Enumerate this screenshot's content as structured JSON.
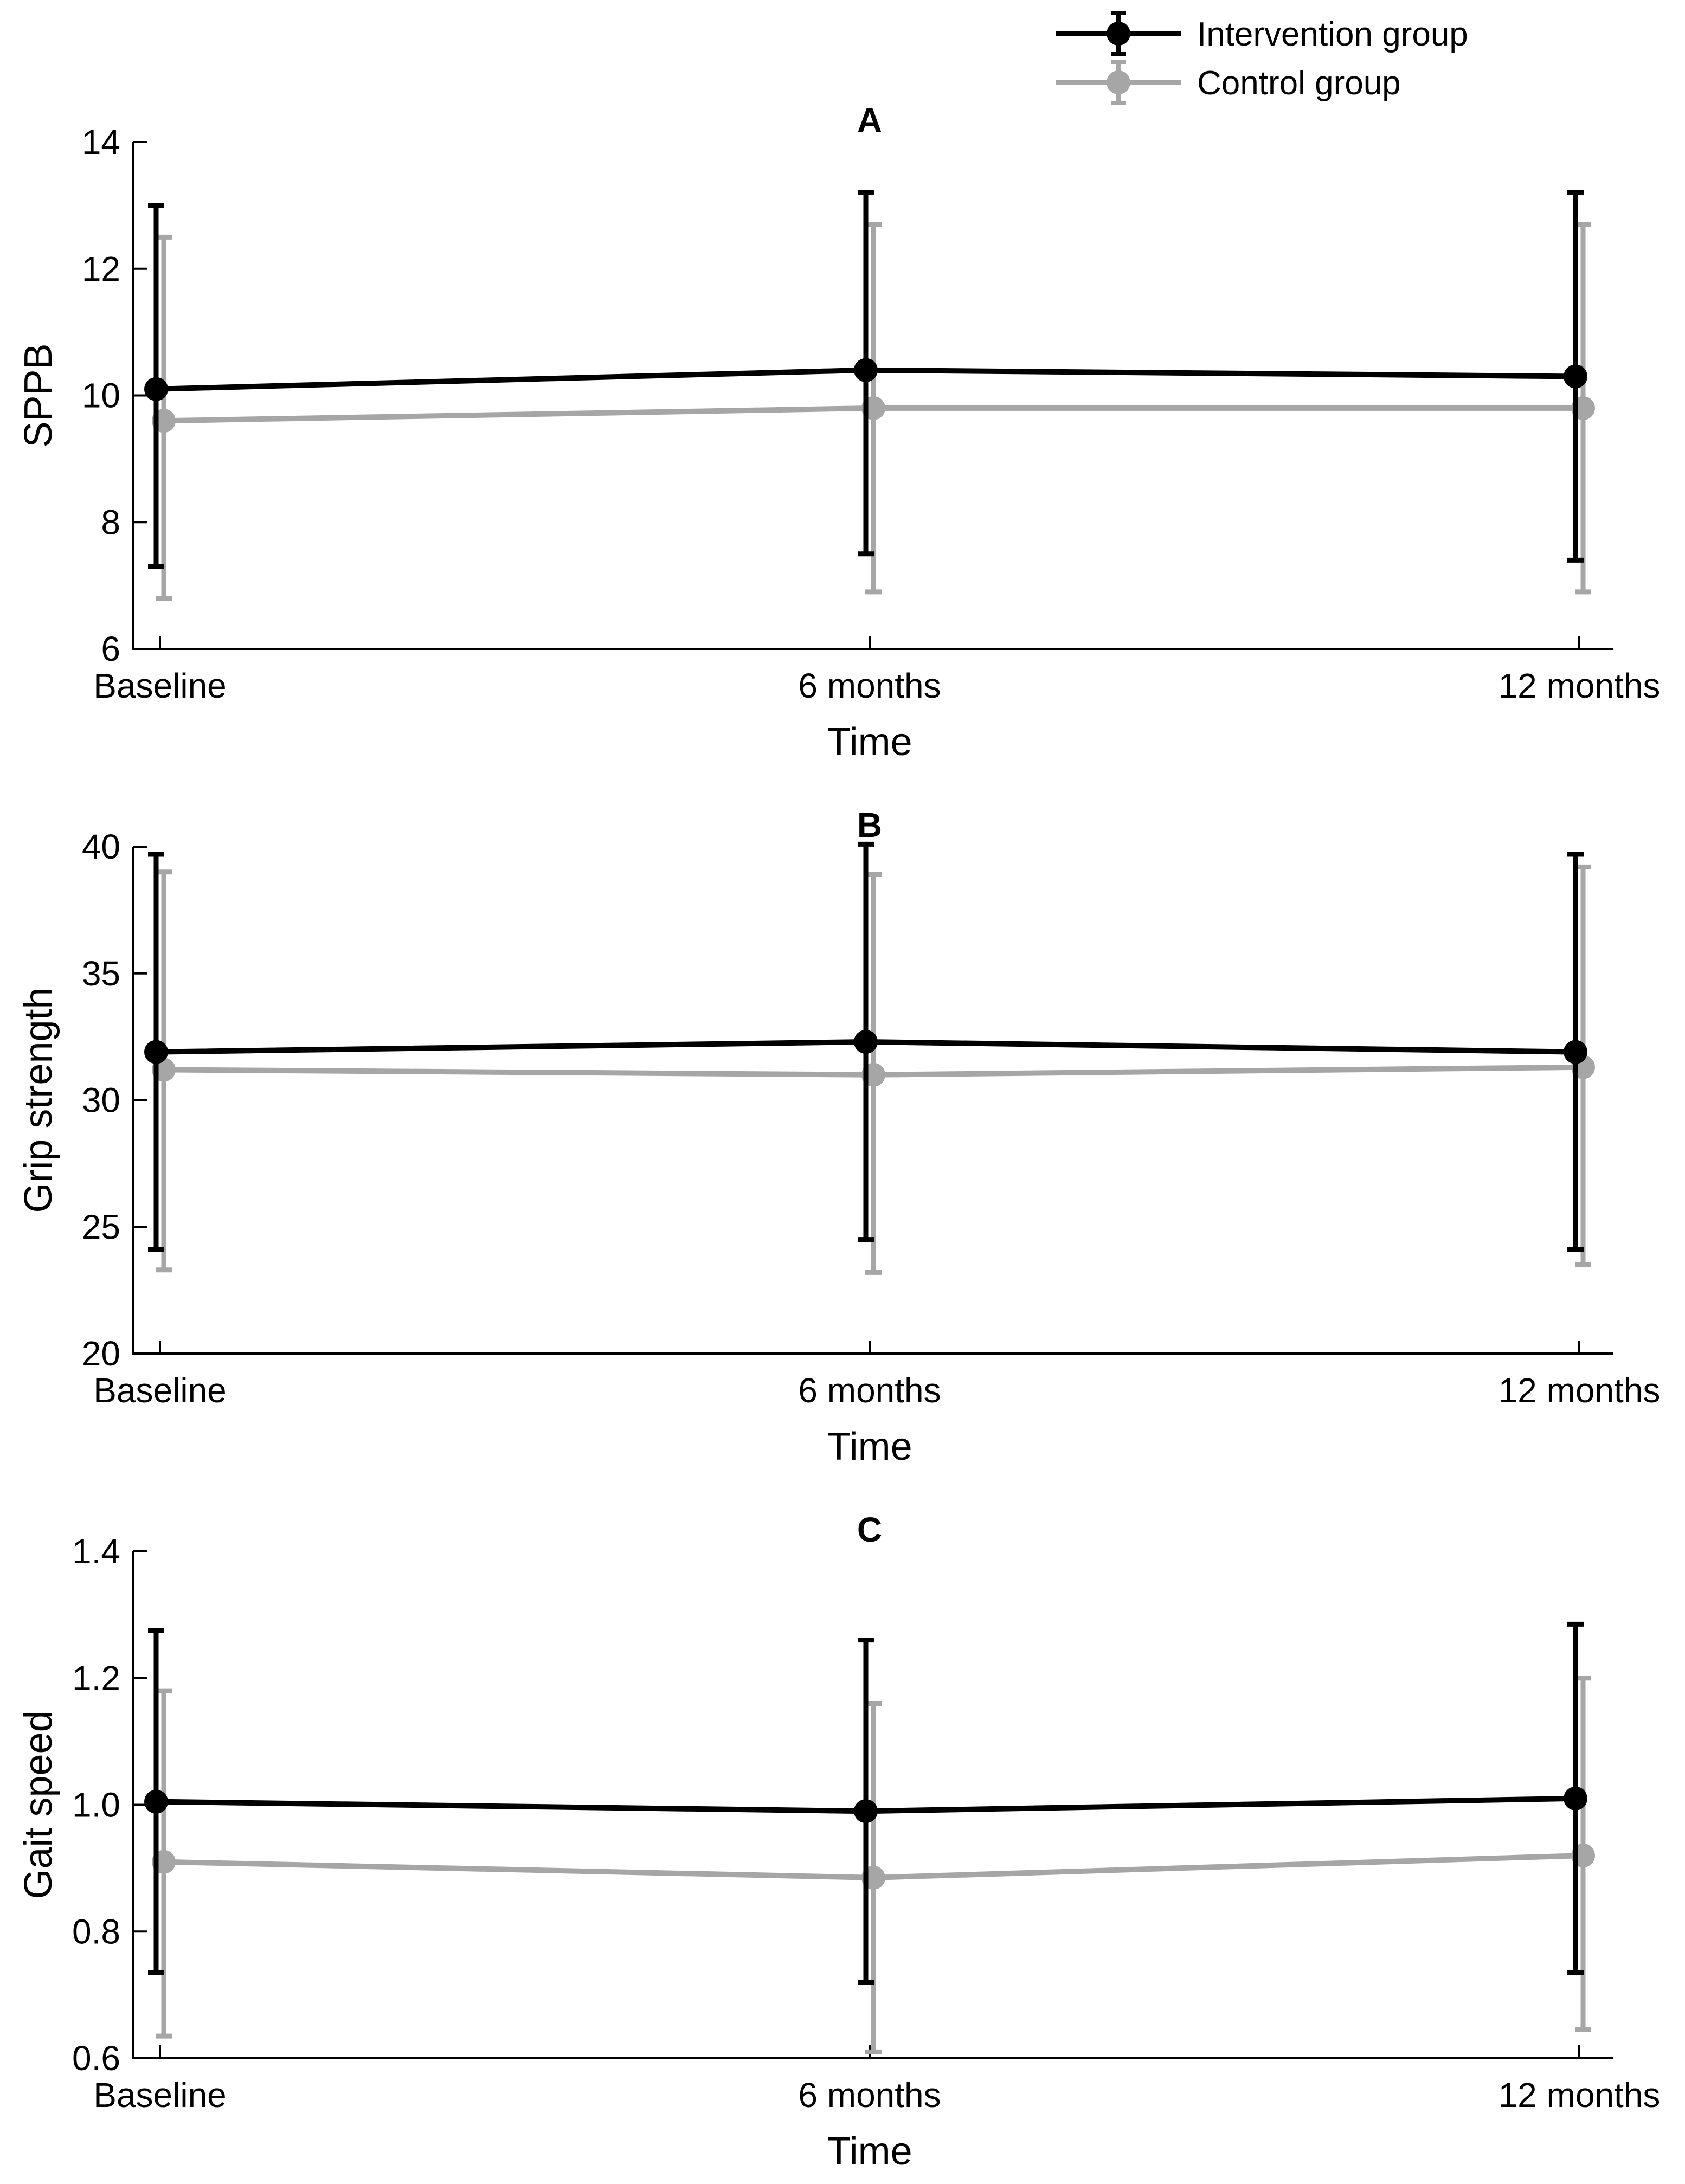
{
  "legend": [
    {
      "name": "Intervention group",
      "color": "#000000"
    },
    {
      "name": "Control group",
      "color": "#a6a6a6"
    }
  ],
  "chart_data": [
    {
      "type": "line",
      "title": "A",
      "xlabel": "Time",
      "ylabel": "SPPB",
      "categories": [
        "Baseline",
        "6 months",
        "12 months"
      ],
      "ylim": [
        6,
        14
      ],
      "yticks": [
        "6",
        "8",
        "10",
        "12",
        "14"
      ],
      "yticks_values": [
        6,
        8,
        10,
        12,
        14
      ],
      "series": [
        {
          "name": "Intervention group",
          "color": "#000000",
          "values": [
            10.1,
            10.4,
            10.3
          ],
          "lower": [
            7.3,
            7.5,
            7.4
          ],
          "upper": [
            13.0,
            13.2,
            13.2
          ]
        },
        {
          "name": "Control group",
          "color": "#a6a6a6",
          "values": [
            9.6,
            9.8,
            9.8
          ],
          "lower": [
            6.8,
            6.9,
            6.9
          ],
          "upper": [
            12.5,
            12.7,
            12.7
          ]
        }
      ]
    },
    {
      "type": "line",
      "title": "B",
      "xlabel": "Time",
      "ylabel": "Grip strength",
      "categories": [
        "Baseline",
        "6 months",
        "12 months"
      ],
      "ylim": [
        20,
        40
      ],
      "yticks": [
        "20",
        "25",
        "30",
        "35",
        "40"
      ],
      "yticks_values": [
        20,
        25,
        30,
        35,
        40
      ],
      "series": [
        {
          "name": "Intervention group",
          "color": "#000000",
          "values": [
            31.9,
            32.3,
            31.9
          ],
          "lower": [
            24.1,
            24.5,
            24.1
          ],
          "upper": [
            39.7,
            40.1,
            39.7
          ]
        },
        {
          "name": "Control group",
          "color": "#a6a6a6",
          "values": [
            31.2,
            31.0,
            31.3
          ],
          "lower": [
            23.3,
            23.2,
            23.5
          ],
          "upper": [
            39.0,
            38.9,
            39.2
          ]
        }
      ]
    },
    {
      "type": "line",
      "title": "C",
      "xlabel": "Time",
      "ylabel": "Gait speed",
      "categories": [
        "Baseline",
        "6 months",
        "12 months"
      ],
      "ylim": [
        0.6,
        1.4
      ],
      "yticks": [
        "0.6",
        "0.8",
        "1.0",
        "1.2",
        "1.4"
      ],
      "yticks_values": [
        0.6,
        0.8,
        1.0,
        1.2,
        1.4
      ],
      "series": [
        {
          "name": "Intervention group",
          "color": "#000000",
          "values": [
            1.005,
            0.99,
            1.01
          ],
          "lower": [
            0.735,
            0.72,
            0.735
          ],
          "upper": [
            1.275,
            1.26,
            1.285
          ]
        },
        {
          "name": "Control group",
          "color": "#a6a6a6",
          "values": [
            0.91,
            0.885,
            0.92
          ],
          "lower": [
            0.635,
            0.61,
            0.645
          ],
          "upper": [
            1.18,
            1.16,
            1.2
          ]
        }
      ]
    }
  ]
}
